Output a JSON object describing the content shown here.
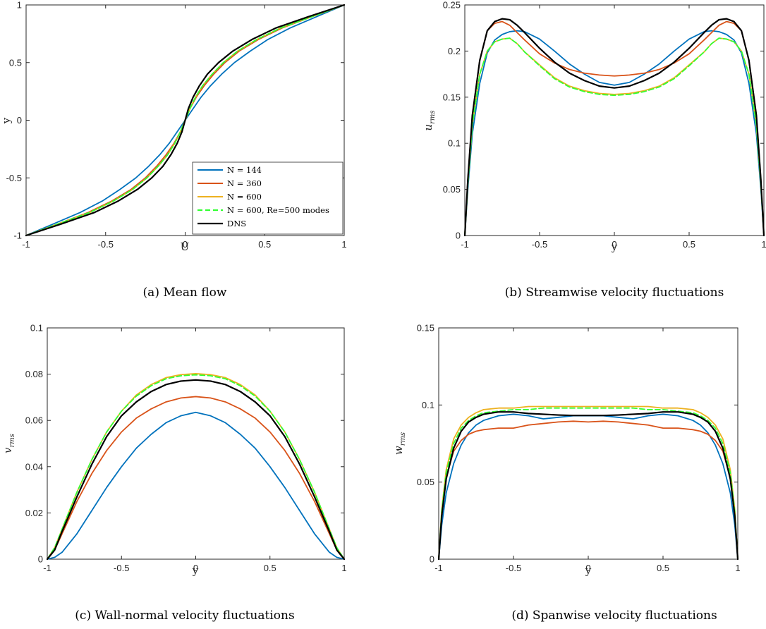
{
  "colors": {
    "n144": "#0072BD",
    "n360": "#D95319",
    "n600": "#EDB120",
    "re500": "#33FF33",
    "dns": "#000000"
  },
  "legend": [
    "N = 144",
    "N = 360",
    "N = 600",
    "N = 600, Re=500 modes",
    "DNS"
  ],
  "chart_data": [
    {
      "id": "a",
      "type": "line",
      "caption": "(a) Mean flow",
      "xlabel": "U",
      "ylabel": "y",
      "xlim": [
        -1,
        1
      ],
      "ylim": [
        -1,
        1
      ],
      "xticks": [
        -1,
        -0.5,
        0,
        0.5,
        1
      ],
      "yticks": [
        -1,
        -0.5,
        0,
        0.5,
        1
      ],
      "xtick_labels": [
        "-1",
        "-0.5",
        "0",
        "0.5",
        "1"
      ],
      "ytick_labels": [
        "-1",
        "-0.5",
        "0",
        "0.5",
        "1"
      ],
      "legend": "inside-lower-right",
      "y": [
        -1,
        -0.9,
        -0.8,
        -0.7,
        -0.6,
        -0.5,
        -0.4,
        -0.3,
        -0.2,
        -0.1,
        0,
        0.1,
        0.2,
        0.3,
        0.4,
        0.5,
        0.6,
        0.7,
        0.8,
        0.9,
        1
      ],
      "series": [
        {
          "name": "N = 144",
          "color_key": "n144",
          "dash": false,
          "x": [
            -1,
            -0.83,
            -0.66,
            -0.52,
            -0.41,
            -0.31,
            -0.23,
            -0.16,
            -0.1,
            -0.05,
            0,
            0.05,
            0.1,
            0.16,
            0.23,
            0.31,
            0.41,
            0.52,
            0.66,
            0.83,
            1
          ]
        },
        {
          "name": "N = 360",
          "color_key": "n360",
          "dash": false,
          "x": [
            -1,
            -0.8,
            -0.61,
            -0.46,
            -0.34,
            -0.25,
            -0.18,
            -0.12,
            -0.07,
            -0.03,
            0,
            0.03,
            0.07,
            0.12,
            0.18,
            0.25,
            0.34,
            0.46,
            0.61,
            0.8,
            1
          ]
        },
        {
          "name": "N = 600",
          "color_key": "n600",
          "dash": false,
          "x": [
            -1,
            -0.8,
            -0.6,
            -0.45,
            -0.33,
            -0.24,
            -0.17,
            -0.11,
            -0.065,
            -0.03,
            0,
            0.03,
            0.065,
            0.11,
            0.17,
            0.24,
            0.33,
            0.45,
            0.6,
            0.8,
            1
          ]
        },
        {
          "name": "N = 600, Re=500 modes",
          "color_key": "re500",
          "dash": true,
          "x": [
            -1,
            -0.8,
            -0.6,
            -0.45,
            -0.33,
            -0.24,
            -0.17,
            -0.11,
            -0.065,
            -0.03,
            0,
            0.03,
            0.065,
            0.11,
            0.17,
            0.24,
            0.33,
            0.45,
            0.6,
            0.8,
            1
          ]
        },
        {
          "name": "DNS",
          "color_key": "dns",
          "dash": false,
          "x": [
            -1,
            -0.78,
            -0.57,
            -0.42,
            -0.3,
            -0.21,
            -0.14,
            -0.09,
            -0.05,
            -0.02,
            0,
            0.02,
            0.05,
            0.09,
            0.14,
            0.21,
            0.3,
            0.42,
            0.57,
            0.78,
            1
          ]
        }
      ]
    },
    {
      "id": "b",
      "type": "line",
      "caption": "(b) Streamwise velocity fluctuations",
      "xlabel": "y",
      "ylabel": "u",
      "ylabel_sub": "rms",
      "xlim": [
        -1,
        1
      ],
      "ylim": [
        0,
        0.25
      ],
      "xticks": [
        -1,
        -0.5,
        0,
        0.5,
        1
      ],
      "yticks": [
        0,
        0.05,
        0.1,
        0.15,
        0.2,
        0.25
      ],
      "xtick_labels": [
        "-1",
        "-0.5",
        "0",
        "0.5",
        "1"
      ],
      "ytick_labels": [
        "0",
        "0.05",
        "0.1",
        "0.15",
        "0.2",
        "0.25"
      ],
      "x": [
        -1,
        -0.98,
        -0.95,
        -0.9,
        -0.85,
        -0.8,
        -0.75,
        -0.7,
        -0.65,
        -0.6,
        -0.5,
        -0.4,
        -0.3,
        -0.2,
        -0.1,
        0,
        0.1,
        0.2,
        0.3,
        0.4,
        0.5,
        0.6,
        0.65,
        0.7,
        0.75,
        0.8,
        0.85,
        0.9,
        0.95,
        0.98,
        1
      ],
      "series": [
        {
          "name": "N = 144",
          "color_key": "n144",
          "dash": false,
          "y": [
            0,
            0.05,
            0.11,
            0.165,
            0.198,
            0.212,
            0.218,
            0.221,
            0.222,
            0.221,
            0.213,
            0.2,
            0.186,
            0.175,
            0.166,
            0.163,
            0.166,
            0.175,
            0.186,
            0.2,
            0.213,
            0.221,
            0.222,
            0.221,
            0.218,
            0.212,
            0.198,
            0.165,
            0.11,
            0.05,
            0
          ]
        },
        {
          "name": "N = 360",
          "color_key": "n360",
          "dash": false,
          "y": [
            0,
            0.06,
            0.13,
            0.19,
            0.222,
            0.23,
            0.232,
            0.228,
            0.22,
            0.212,
            0.197,
            0.187,
            0.18,
            0.176,
            0.174,
            0.173,
            0.174,
            0.176,
            0.18,
            0.187,
            0.197,
            0.212,
            0.22,
            0.228,
            0.232,
            0.23,
            0.222,
            0.19,
            0.13,
            0.06,
            0
          ]
        },
        {
          "name": "N = 600",
          "color_key": "n600",
          "dash": false,
          "y": [
            0,
            0.055,
            0.12,
            0.175,
            0.2,
            0.21,
            0.213,
            0.214,
            0.208,
            0.199,
            0.185,
            0.171,
            0.162,
            0.157,
            0.154,
            0.153,
            0.154,
            0.157,
            0.162,
            0.171,
            0.185,
            0.199,
            0.208,
            0.214,
            0.213,
            0.21,
            0.2,
            0.175,
            0.12,
            0.055,
            0
          ]
        },
        {
          "name": "N = 600, Re=500 modes",
          "color_key": "re500",
          "dash": true,
          "y": [
            0,
            0.055,
            0.12,
            0.175,
            0.2,
            0.21,
            0.213,
            0.214,
            0.208,
            0.199,
            0.184,
            0.17,
            0.161,
            0.156,
            0.153,
            0.152,
            0.153,
            0.156,
            0.161,
            0.17,
            0.184,
            0.199,
            0.208,
            0.214,
            0.213,
            0.21,
            0.2,
            0.175,
            0.12,
            0.055,
            0
          ]
        },
        {
          "name": "DNS",
          "color_key": "dns",
          "dash": false,
          "y": [
            0,
            0.06,
            0.13,
            0.19,
            0.222,
            0.232,
            0.235,
            0.234,
            0.228,
            0.22,
            0.203,
            0.188,
            0.176,
            0.168,
            0.162,
            0.16,
            0.162,
            0.168,
            0.176,
            0.188,
            0.203,
            0.22,
            0.228,
            0.234,
            0.235,
            0.232,
            0.222,
            0.19,
            0.13,
            0.06,
            0
          ]
        }
      ]
    },
    {
      "id": "c",
      "type": "line",
      "caption": "(c) Wall-normal velocity fluctuations",
      "xlabel": "y",
      "ylabel": "v",
      "ylabel_sub": "rms",
      "xlim": [
        -1,
        1
      ],
      "ylim": [
        0,
        0.1
      ],
      "xticks": [
        -1,
        -0.5,
        0,
        0.5,
        1
      ],
      "yticks": [
        0,
        0.02,
        0.04,
        0.06,
        0.08,
        0.1
      ],
      "xtick_labels": [
        "-1",
        "-0.5",
        "0",
        "0.5",
        "1"
      ],
      "ytick_labels": [
        "0",
        "0.02",
        "0.04",
        "0.06",
        "0.08",
        "0.1"
      ],
      "x": [
        -1,
        -0.95,
        -0.9,
        -0.8,
        -0.7,
        -0.6,
        -0.5,
        -0.4,
        -0.3,
        -0.2,
        -0.1,
        0,
        0.1,
        0.2,
        0.3,
        0.4,
        0.5,
        0.6,
        0.7,
        0.8,
        0.9,
        0.95,
        1
      ],
      "series": [
        {
          "name": "N = 144",
          "color_key": "n144",
          "dash": false,
          "y": [
            0,
            0.0008,
            0.003,
            0.011,
            0.021,
            0.031,
            0.04,
            0.048,
            0.054,
            0.059,
            0.062,
            0.0635,
            0.062,
            0.059,
            0.054,
            0.048,
            0.04,
            0.031,
            0.021,
            0.011,
            0.003,
            0.0008,
            0
          ]
        },
        {
          "name": "N = 360",
          "color_key": "n360",
          "dash": false,
          "y": [
            0,
            0.004,
            0.011,
            0.025,
            0.037,
            0.047,
            0.055,
            0.061,
            0.065,
            0.068,
            0.0697,
            0.0703,
            0.0697,
            0.068,
            0.065,
            0.061,
            0.055,
            0.047,
            0.037,
            0.025,
            0.011,
            0.004,
            0
          ]
        },
        {
          "name": "N = 600",
          "color_key": "n600",
          "dash": false,
          "y": [
            0,
            0.005,
            0.013,
            0.029,
            0.043,
            0.055,
            0.064,
            0.071,
            0.0755,
            0.0785,
            0.0798,
            0.0802,
            0.0798,
            0.0785,
            0.0755,
            0.071,
            0.064,
            0.055,
            0.043,
            0.029,
            0.013,
            0.005,
            0
          ]
        },
        {
          "name": "N = 600, Re=500 modes",
          "color_key": "re500",
          "dash": true,
          "y": [
            0,
            0.005,
            0.013,
            0.029,
            0.043,
            0.055,
            0.064,
            0.0705,
            0.075,
            0.078,
            0.0793,
            0.0797,
            0.0793,
            0.078,
            0.075,
            0.0705,
            0.064,
            0.055,
            0.043,
            0.029,
            0.013,
            0.005,
            0
          ]
        },
        {
          "name": "DNS",
          "color_key": "dns",
          "dash": false,
          "y": [
            0,
            0.004,
            0.012,
            0.027,
            0.041,
            0.053,
            0.062,
            0.068,
            0.0725,
            0.0755,
            0.077,
            0.0775,
            0.077,
            0.0755,
            0.0725,
            0.068,
            0.062,
            0.053,
            0.041,
            0.027,
            0.012,
            0.004,
            0
          ]
        }
      ]
    },
    {
      "id": "d",
      "type": "line",
      "caption": "(d) Spanwise velocity fluctuations",
      "xlabel": "y",
      "ylabel": "w",
      "ylabel_sub": "rms",
      "xlim": [
        -1,
        1
      ],
      "ylim": [
        0,
        0.15
      ],
      "xticks": [
        -1,
        -0.5,
        0,
        0.5,
        1
      ],
      "yticks": [
        0,
        0.05,
        0.1,
        0.15
      ],
      "xtick_labels": [
        "-1",
        "-0.5",
        "0",
        "0.5",
        "1"
      ],
      "ytick_labels": [
        "0",
        "0.05",
        "0.1",
        "0.15"
      ],
      "x": [
        -1,
        -0.98,
        -0.95,
        -0.9,
        -0.85,
        -0.8,
        -0.75,
        -0.7,
        -0.6,
        -0.5,
        -0.4,
        -0.3,
        -0.2,
        -0.1,
        0,
        0.1,
        0.2,
        0.3,
        0.4,
        0.5,
        0.6,
        0.7,
        0.75,
        0.8,
        0.85,
        0.9,
        0.95,
        0.98,
        1
      ],
      "series": [
        {
          "name": "N = 144",
          "color_key": "n144",
          "dash": false,
          "y": [
            0,
            0.022,
            0.043,
            0.062,
            0.074,
            0.082,
            0.087,
            0.09,
            0.093,
            0.094,
            0.093,
            0.091,
            0.092,
            0.093,
            0.093,
            0.093,
            0.092,
            0.091,
            0.093,
            0.094,
            0.093,
            0.09,
            0.087,
            0.082,
            0.074,
            0.062,
            0.043,
            0.022,
            0
          ]
        },
        {
          "name": "N = 360",
          "color_key": "n360",
          "dash": false,
          "y": [
            0,
            0.03,
            0.053,
            0.07,
            0.077,
            0.081,
            0.083,
            0.084,
            0.085,
            0.085,
            0.087,
            0.088,
            0.089,
            0.0895,
            0.089,
            0.0895,
            0.089,
            0.088,
            0.087,
            0.085,
            0.085,
            0.084,
            0.083,
            0.081,
            0.077,
            0.07,
            0.053,
            0.03,
            0
          ]
        },
        {
          "name": "N = 600",
          "color_key": "n600",
          "dash": false,
          "y": [
            0,
            0.032,
            0.058,
            0.078,
            0.087,
            0.092,
            0.095,
            0.097,
            0.098,
            0.098,
            0.099,
            0.099,
            0.099,
            0.099,
            0.099,
            0.099,
            0.099,
            0.099,
            0.099,
            0.098,
            0.098,
            0.097,
            0.095,
            0.092,
            0.087,
            0.078,
            0.058,
            0.032,
            0
          ]
        },
        {
          "name": "N = 600, Re=500 modes",
          "color_key": "re500",
          "dash": true,
          "y": [
            0,
            0.031,
            0.056,
            0.075,
            0.085,
            0.09,
            0.093,
            0.095,
            0.096,
            0.097,
            0.097,
            0.098,
            0.098,
            0.098,
            0.098,
            0.098,
            0.098,
            0.098,
            0.097,
            0.097,
            0.096,
            0.095,
            0.093,
            0.09,
            0.085,
            0.075,
            0.056,
            0.031,
            0
          ]
        },
        {
          "name": "DNS",
          "color_key": "dns",
          "dash": false,
          "y": [
            0,
            0.028,
            0.052,
            0.072,
            0.083,
            0.089,
            0.092,
            0.094,
            0.0955,
            0.0955,
            0.0945,
            0.094,
            0.0935,
            0.0932,
            0.0932,
            0.0932,
            0.0935,
            0.094,
            0.0945,
            0.0955,
            0.0955,
            0.094,
            0.092,
            0.089,
            0.083,
            0.072,
            0.052,
            0.028,
            0
          ]
        }
      ]
    }
  ]
}
